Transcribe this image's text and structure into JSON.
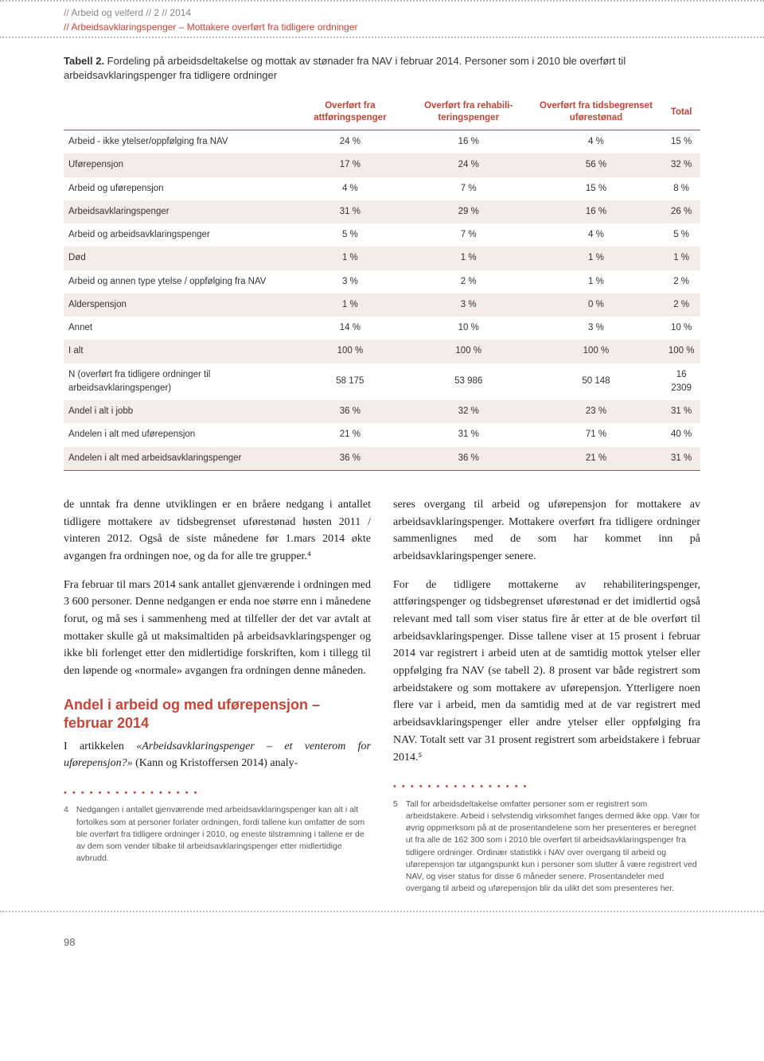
{
  "header": {
    "line1": "// Arbeid og velferd // 2 // 2014",
    "line2": "// Arbeidsavklaringspenger – Mottakere overført fra tidligere ordninger"
  },
  "table": {
    "caption_bold": "Tabell 2.",
    "caption_rest": " Fordeling på arbeidsdeltakelse og mottak av stønader fra NAV i februar 2014. Personer som i 2010 ble overført til arbeidsavklaringspenger fra tidligere ordninger",
    "columns": [
      "",
      "Overført fra attføringspenger",
      "Overført fra rehabili­teringspenger",
      "Overført fra tids­begrenset uførestønad",
      "Total"
    ],
    "rows": [
      {
        "label": "Arbeid - ikke ytelser/oppfølging fra NAV",
        "c1": "24 %",
        "c2": "16 %",
        "c3": "4 %",
        "c4": "15 %",
        "shade": false
      },
      {
        "label": "Uførepensjon",
        "c1": "17 %",
        "c2": "24 %",
        "c3": "56 %",
        "c4": "32 %",
        "shade": true
      },
      {
        "label": "Arbeid og uførepensjon",
        "c1": "4 %",
        "c2": "7 %",
        "c3": "15 %",
        "c4": "8 %",
        "shade": false
      },
      {
        "label": "Arbeidsavklaringspenger",
        "c1": "31 %",
        "c2": "29 %",
        "c3": "16 %",
        "c4": "26 %",
        "shade": true
      },
      {
        "label": "Arbeid og arbeidsavklaringspenger",
        "c1": "5 %",
        "c2": "7 %",
        "c3": "4 %",
        "c4": "5 %",
        "shade": false
      },
      {
        "label": "Død",
        "c1": "1 %",
        "c2": "1 %",
        "c3": "1 %",
        "c4": "1 %",
        "shade": true
      },
      {
        "label": "Arbeid og annen type ytelse / oppfølging fra NAV",
        "c1": "3 %",
        "c2": "2 %",
        "c3": "1 %",
        "c4": "2 %",
        "shade": false
      },
      {
        "label": "Alderspensjon",
        "c1": "1 %",
        "c2": "3 %",
        "c3": "0 %",
        "c4": "2 %",
        "shade": true
      },
      {
        "label": "Annet",
        "c1": "14 %",
        "c2": "10 %",
        "c3": "3 %",
        "c4": "10 %",
        "shade": false
      },
      {
        "label": "I alt",
        "c1": "100 %",
        "c2": "100 %",
        "c3": "100 %",
        "c4": "100 %",
        "shade": true
      },
      {
        "label": "N (overført fra tidligere ordninger til arbeidsavklaringspenger)",
        "c1": "58 175",
        "c2": "53 986",
        "c3": "50 148",
        "c4": "16 2309",
        "shade": false
      },
      {
        "label": "Andel i alt i jobb",
        "c1": "36 %",
        "c2": "32 %",
        "c3": "23 %",
        "c4": "31 %",
        "shade": true
      },
      {
        "label": "Andelen i alt med uførepensjon",
        "c1": "21 %",
        "c2": "31 %",
        "c3": "71 %",
        "c4": "40 %",
        "shade": false
      },
      {
        "label": "Andelen i alt med arbeidsavklaringspenger",
        "c1": "36 %",
        "c2": "36 %",
        "c3": "21 %",
        "c4": "31 %",
        "shade": true
      }
    ],
    "header_color": "#c84434",
    "shade_color": "#f4ece6"
  },
  "left_col": {
    "p1": "de unntak fra denne utviklingen er en bråere nedgang i antallet tidligere mottakere av tidsbegrenset uførestønad høsten 2011 / vinteren 2012. Også de siste månedene før 1.mars 2014 økte avgangen fra ordningen noe, og da for alle tre grupper.⁴",
    "p2": "Fra februar til mars 2014 sank antallet gjenværende i ordningen med 3 600 personer. Denne nedgangen er enda noe større enn i månedene forut, og må ses i sammenheng med at tilfeller der det var avtalt at mottaker skulle gå ut maksimaltiden på arbeidsavklaringspenger og ikke bli forlenget etter den midlertidige forskriften, kom i tillegg til den løpende og «normale» avgangen fra ordningen denne måneden.",
    "h2": "Andel i arbeid og med uførepensjon – februar 2014",
    "p3a": "I artikkelen ",
    "p3i": "«Arbeidsavklaringspenger – et venterom for uførepensjon?»",
    "p3b": " (Kann og Kristoffersen 2014) analy-",
    "fn_num": "4",
    "fn_text": "Nedgangen i antallet gjenværende med arbeidsavklaringspenger kan alt i alt fortolkes som at personer forlater ordningen, fordi tallene kun omfatter de som ble overført fra tidligere ordninger i 2010, og eneste tilstrømning i tallene er de av dem som vender tilbake til arbeidsavklaringspenger etter midlertidige avbrudd."
  },
  "right_col": {
    "p1": "seres overgang til arbeid og uførepensjon for mottakere av arbeidsavklaringspenger. Mottakere overført fra tidligere ordninger sammenlignes med de som har kommet inn på arbeidsavklaringspenger senere.",
    "p2": "For de tidligere mottakerne av rehabiliteringspenger, attføringspenger og tidsbegrenset uførestønad er det imidlertid også relevant med tall som viser status fire år etter at de ble overført til arbeidsavklaringspenger. Disse tallene viser at 15 prosent i februar 2014 var registrert i arbeid uten at de samtidig mottok ytelser eller oppfølging fra NAV (se tabell 2). 8 prosent var både registrert som arbeidstakere og som mottakere av uførepensjon. Ytterligere noen flere var i arbeid, men da samtidig med at de var registrert med arbeidsavklaringspenger eller andre ytelser eller oppfølging fra NAV. Totalt sett var 31 prosent registrert som arbeidstakere i februar 2014.⁵",
    "fn_num": "5",
    "fn_text": "Tall for arbeidsdeltakelse omfatter personer som er registrert som arbeidstakere. Arbeid i selvstendig virksomhet fanges dermed ikke opp. Vær for øvrig oppmerksom på at de prosentandelene som her presenteres er beregnet ut fra alle de 162 300 som i 2010 ble overført til arbeidsavklaringspenger fra tidligere ordninger. Ordinær statistikk i NAV over overgang til arbeid og uførepensjon tar utgangspunkt kun i personer som slutter å være registrert ved NAV, og viser status for disse 6 måneder senere. Prosentandeler med overgang til arbeid og uførepensjon blir da ulikt det som presenteres her."
  },
  "page_number": "98"
}
